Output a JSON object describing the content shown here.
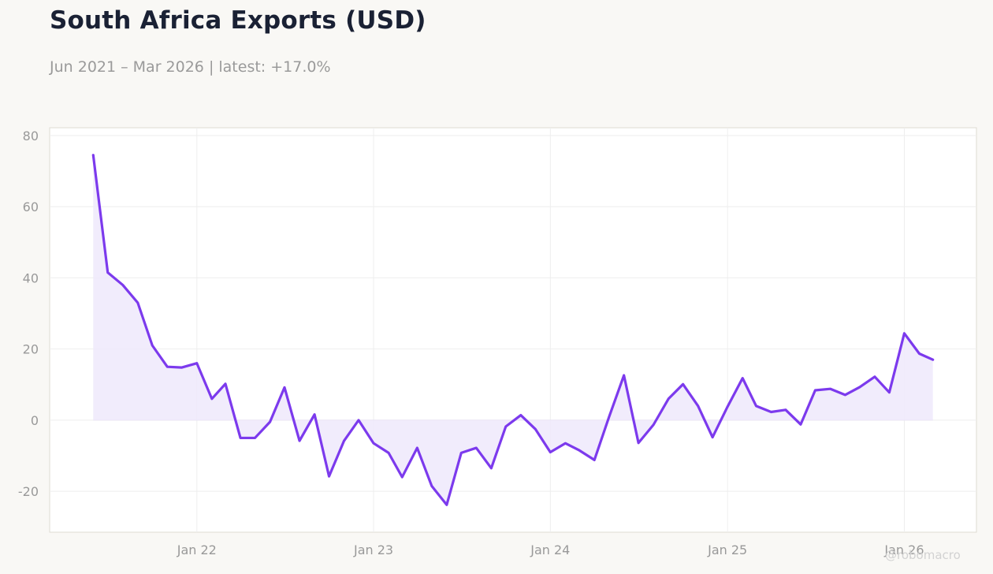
{
  "header": {
    "title": "South Africa Exports (USD)",
    "subtitle": "Jun 2021 – Mar 2026 | latest: +17.0%"
  },
  "watermark": "@robomacro",
  "colors": {
    "background": "#f9f8f5",
    "plot_background": "#ffffff",
    "line": "#7c3aed",
    "fill": "#efe9fc",
    "grid": "#eeeeee",
    "zero_line": "#e4e0f2"
  },
  "chart_data": {
    "type": "area",
    "title": "South Africa Exports (USD)",
    "subtitle": "Jun 2021 – Mar 2026 | latest: +17.0%",
    "xlabel": "",
    "ylabel": "",
    "x": [
      "2021-06",
      "2021-07",
      "2021-08",
      "2021-09",
      "2021-10",
      "2021-11",
      "2021-12",
      "2022-01",
      "2022-02",
      "2022-03",
      "2022-04",
      "2022-05",
      "2022-06",
      "2022-07",
      "2022-08",
      "2022-09",
      "2022-10",
      "2022-11",
      "2022-12",
      "2023-01",
      "2023-02",
      "2023-03",
      "2023-04",
      "2023-05",
      "2023-06",
      "2023-07",
      "2023-08",
      "2023-09",
      "2023-10",
      "2023-11",
      "2023-12",
      "2024-01",
      "2024-02",
      "2024-03",
      "2024-04",
      "2024-05",
      "2024-06",
      "2024-07",
      "2024-08",
      "2024-09",
      "2024-10",
      "2024-11",
      "2024-12",
      "2025-01",
      "2025-02",
      "2025-03",
      "2025-04",
      "2025-05",
      "2025-06",
      "2025-07",
      "2025-08",
      "2025-09",
      "2025-10",
      "2025-11",
      "2025-12",
      "2026-01",
      "2026-02",
      "2026-03"
    ],
    "series": [
      {
        "values": [
          74.5,
          41.5,
          38.0,
          33.0,
          21.0,
          15.0,
          14.8,
          16.0,
          6.0,
          10.2,
          -5.0,
          -5.0,
          -0.5,
          9.2,
          -5.8,
          1.6,
          -15.8,
          -5.8,
          0.0,
          -6.5,
          -9.2,
          -16.0,
          -7.8,
          -18.5,
          -23.8,
          -9.2,
          -7.8,
          -13.5,
          -1.8,
          1.4,
          -2.5,
          -9.0,
          -6.5,
          -8.5,
          -11.2,
          0.8,
          12.6,
          -6.4,
          -1.3,
          6.0,
          10.1,
          4.0,
          -4.8,
          3.8,
          11.8,
          4.0,
          2.3,
          2.9,
          -1.2,
          8.4,
          8.8,
          7.1,
          9.3,
          12.2,
          7.8,
          24.4,
          18.7,
          17.0
        ]
      }
    ],
    "xticks": [
      {
        "value": "2022-01",
        "label": "Jan 22"
      },
      {
        "value": "2023-01",
        "label": "Jan 23"
      },
      {
        "value": "2024-01",
        "label": "Jan 24"
      },
      {
        "value": "2025-01",
        "label": "Jan 25"
      },
      {
        "value": "2026-01",
        "label": "Jan 26"
      }
    ],
    "yticks": [
      80,
      60,
      40,
      20,
      0,
      -20
    ],
    "ylim": [
      -31.5,
      82.2
    ],
    "xlim": [
      "2021-03-03",
      "2026-05-30"
    ],
    "grid": true,
    "legend": "none"
  }
}
